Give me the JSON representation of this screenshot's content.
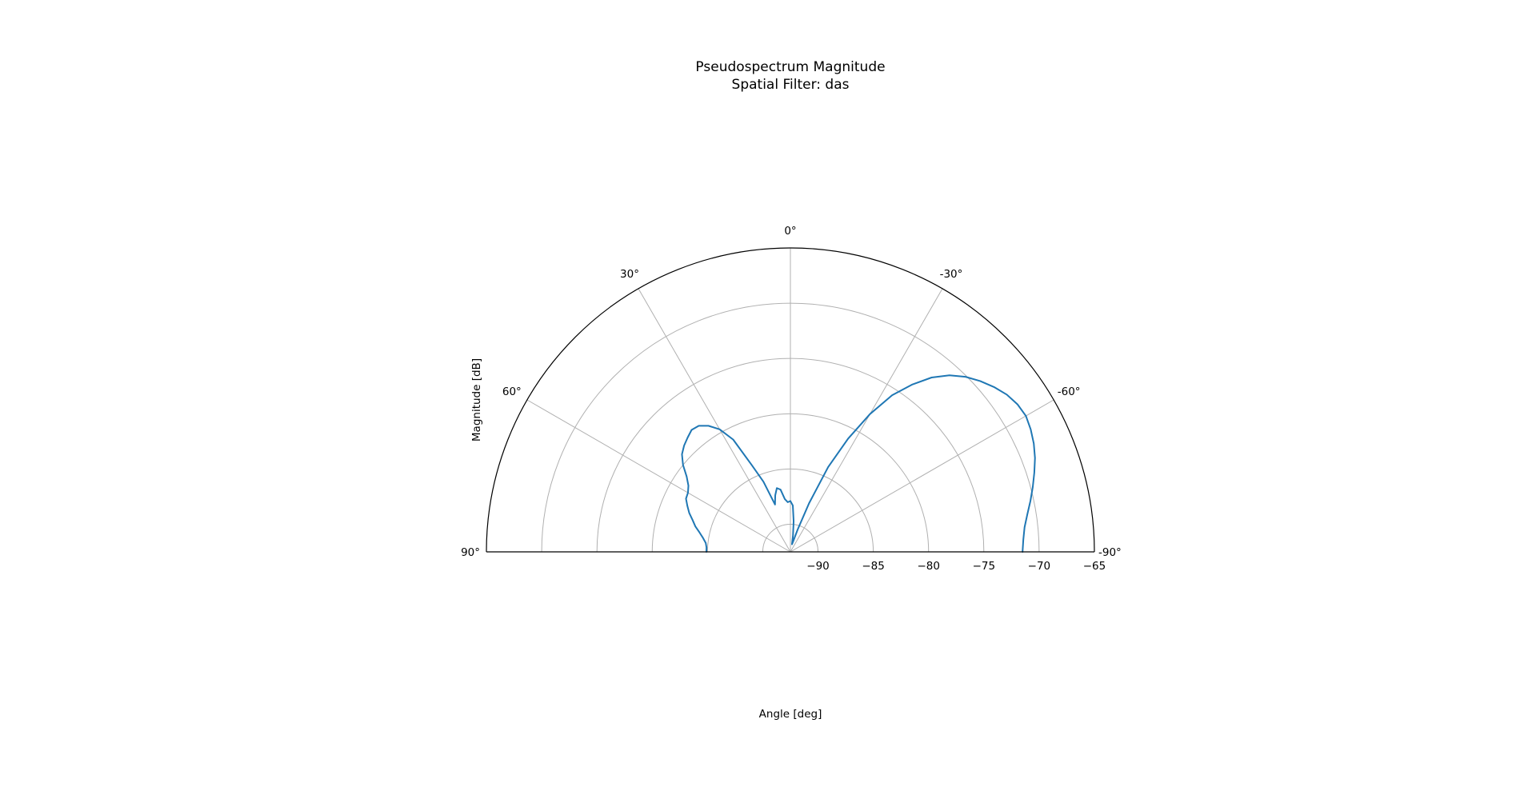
{
  "chart_data": {
    "type": "polar-line",
    "title": "Pseudospectrum Magnitude",
    "subtitle": "Spatial Filter: das",
    "xlabel": "Angle [deg]",
    "ylabel": "Magnitude [dB]",
    "theta_range": [
      -90,
      90
    ],
    "theta_ticks": [
      90,
      60,
      30,
      0,
      -30,
      -60,
      -90
    ],
    "theta_tick_labels": [
      "90°",
      "60°",
      "30°",
      "0°",
      "-30°",
      "-60°",
      "-90°"
    ],
    "r_range": [
      -92.5,
      -65.0
    ],
    "r_ticks": [
      -90,
      -85,
      -80,
      -75,
      -70,
      -65
    ],
    "r_tick_labels": [
      "−90",
      "−85",
      "−80",
      "−75",
      "−70",
      "−65"
    ],
    "grid": true,
    "line_color": "#1f77b4",
    "series": [
      {
        "name": "",
        "theta": [
          90,
          87,
          84,
          81,
          78,
          75,
          72,
          69,
          66,
          63,
          60,
          57,
          54,
          51,
          48,
          45,
          42,
          39,
          36,
          33,
          30,
          27,
          24,
          21,
          18,
          15,
          12,
          9,
          6,
          3,
          0,
          -3,
          -6,
          -9,
          -12,
          -15,
          -18,
          -21,
          -24,
          -27,
          -30,
          -33,
          -36,
          -39,
          -42,
          -45,
          -48,
          -51,
          -54,
          -57,
          -60,
          -63,
          -66,
          -69,
          -72,
          -75,
          -78,
          -81,
          -84,
          -87,
          -90
        ],
        "r": [
          -84.9,
          -84.9,
          -84.8,
          -84.5,
          -84.1,
          -83.6,
          -83.2,
          -82.7,
          -82.3,
          -81.9,
          -81.8,
          -81.5,
          -80.9,
          -80.0,
          -79.3,
          -78.9,
          -78.6,
          -78.3,
          -78.4,
          -78.9,
          -79.7,
          -81.1,
          -83.9,
          -85.7,
          -88.0,
          -87.2,
          -86.6,
          -86.8,
          -87.7,
          -88.0,
          -87.9,
          -88.3,
          -89.7,
          -91.0,
          -91.8,
          -91.5,
          -90.4,
          -87.8,
          -84.1,
          -81.0,
          -78.1,
          -75.6,
          -73.8,
          -72.2,
          -71.0,
          -70.1,
          -69.4,
          -68.8,
          -68.3,
          -68.0,
          -67.9,
          -68.1,
          -68.4,
          -68.8,
          -69.3,
          -69.8,
          -70.3,
          -70.8,
          -71.2,
          -71.4,
          -71.5
        ]
      }
    ]
  }
}
